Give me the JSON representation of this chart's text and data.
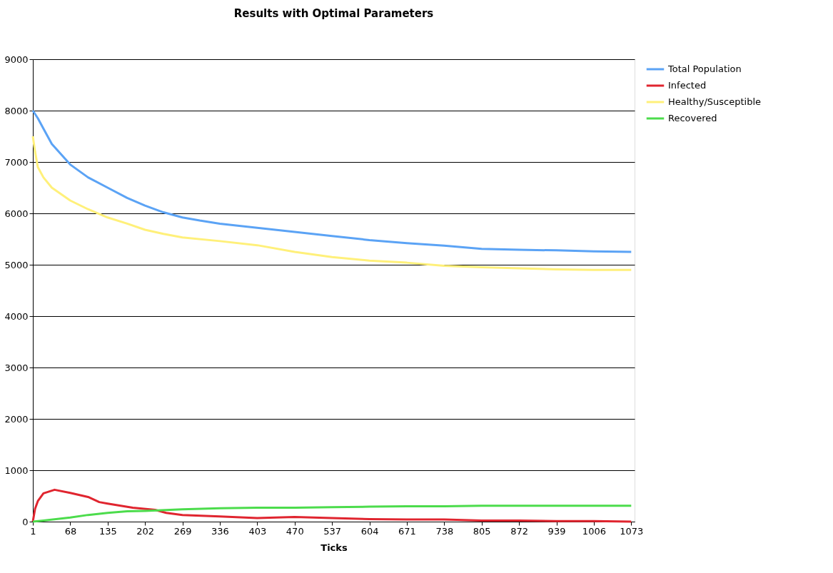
{
  "chart_data": {
    "type": "line",
    "title": "Results with Optimal Parameters",
    "xlabel": "Ticks",
    "xlim": [
      1,
      1079
    ],
    "xticks": [
      1,
      68,
      135,
      202,
      269,
      336,
      403,
      470,
      537,
      604,
      671,
      738,
      805,
      872,
      939,
      1006,
      1073
    ],
    "ylim": [
      0,
      9000
    ],
    "yticks": [
      0,
      1000,
      2000,
      3000,
      4000,
      5000,
      6000,
      7000,
      8000,
      9000
    ],
    "grid": "y",
    "legend": "right",
    "marker": "none",
    "line_style": "solid",
    "series": [
      {
        "name": "Total Population",
        "color": "#5ba3f5",
        "x": [
          1,
          10,
          20,
          35,
          68,
          100,
          135,
          170,
          202,
          235,
          269,
          300,
          336,
          403,
          470,
          537,
          604,
          671,
          738,
          805,
          872,
          939,
          1006,
          1073
        ],
        "values": [
          8000,
          7850,
          7650,
          7350,
          6950,
          6700,
          6500,
          6300,
          6150,
          6020,
          5920,
          5860,
          5800,
          5720,
          5640,
          5560,
          5480,
          5420,
          5370,
          5310,
          5290,
          5280,
          5260,
          5250
        ]
      },
      {
        "name": "Infected",
        "color": "#e0252f",
        "x": [
          1,
          5,
          10,
          20,
          40,
          68,
          100,
          120,
          135,
          180,
          220,
          240,
          269,
          336,
          403,
          470,
          537,
          604,
          671,
          738,
          805,
          872,
          939,
          1006,
          1073
        ],
        "values": [
          0,
          250,
          400,
          550,
          620,
          560,
          480,
          380,
          350,
          270,
          230,
          170,
          130,
          100,
          70,
          90,
          70,
          50,
          40,
          40,
          20,
          20,
          10,
          10,
          0
        ]
      },
      {
        "name": "Healthy/Susceptible",
        "color": "#fff07a",
        "x": [
          1,
          5,
          10,
          20,
          35,
          68,
          100,
          135,
          170,
          202,
          235,
          269,
          336,
          403,
          470,
          537,
          604,
          671,
          738,
          805,
          872,
          939,
          1006,
          1073
        ],
        "values": [
          7500,
          7200,
          6900,
          6700,
          6500,
          6250,
          6080,
          5920,
          5800,
          5680,
          5600,
          5530,
          5460,
          5380,
          5250,
          5150,
          5080,
          5040,
          4980,
          4950,
          4930,
          4910,
          4900,
          4900
        ]
      },
      {
        "name": "Recovered",
        "color": "#4cdc4c",
        "x": [
          1,
          20,
          68,
          100,
          135,
          170,
          202,
          269,
          336,
          403,
          470,
          537,
          604,
          671,
          738,
          805,
          872,
          939,
          1006,
          1073
        ],
        "values": [
          0,
          20,
          80,
          130,
          170,
          200,
          210,
          240,
          260,
          270,
          270,
          280,
          290,
          300,
          300,
          310,
          310,
          310,
          310,
          310
        ]
      }
    ]
  }
}
